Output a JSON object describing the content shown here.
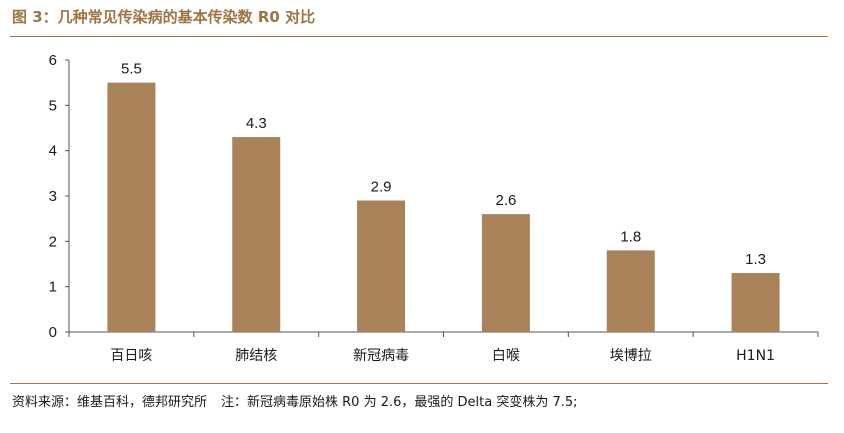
{
  "figure": {
    "title": "图 3：几种常见传染病的基本传染数 R0 对比"
  },
  "colors": {
    "accent": "#9e7443",
    "bar": "#a9825a",
    "axis": "#555555"
  },
  "chart_data": {
    "type": "bar",
    "title": "",
    "xlabel": "",
    "ylabel": "",
    "categories": [
      "百日咳",
      "肺结核",
      "新冠病毒",
      "白喉",
      "埃博拉",
      "H1N1"
    ],
    "values": [
      5.5,
      4.3,
      2.9,
      2.6,
      1.8,
      1.3
    ],
    "value_labels": [
      "5.5",
      "4.3",
      "2.9",
      "2.6",
      "1.8",
      "1.3"
    ],
    "ylim": [
      0,
      6
    ],
    "yticks": [
      "0",
      "1",
      "2",
      "3",
      "4",
      "5",
      "6"
    ],
    "grid": false,
    "legend": "none"
  },
  "footer": {
    "source": "资料来源：维基百科，德邦研究所",
    "note": "注：新冠病毒原始株 R0 为 2.6，最强的 Delta 突变株为 7.5;"
  }
}
